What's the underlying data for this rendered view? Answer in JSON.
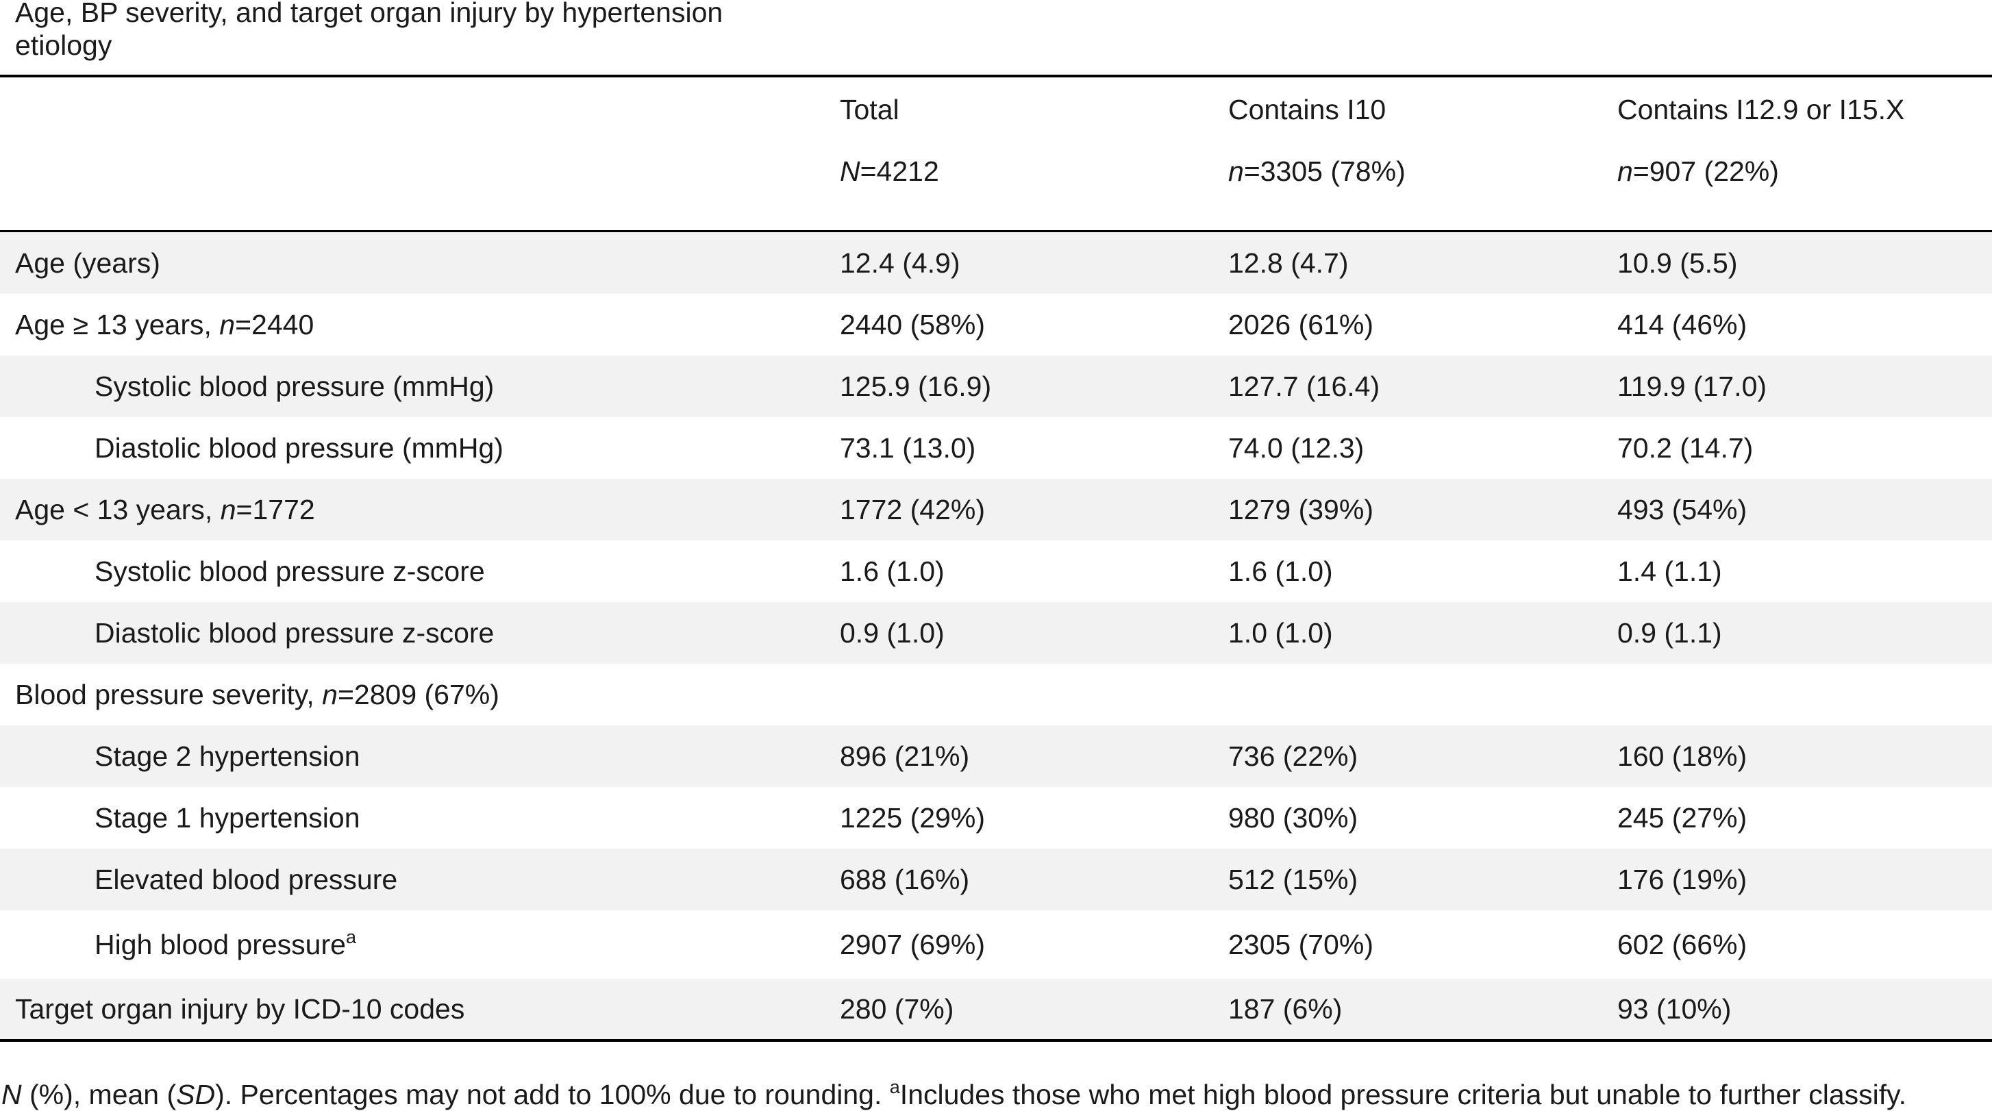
{
  "caption": "Age, BP severity, and target organ injury by hypertension etiology",
  "columns": [
    {
      "label": "Total",
      "n_prefix": "N",
      "n_value": "=4212"
    },
    {
      "label": "Contains I10",
      "n_prefix": "n",
      "n_value": "=3305 (78%)"
    },
    {
      "label": "Contains I12.9 or I15.X",
      "n_prefix": "n",
      "n_value": "=907 (22%)"
    }
  ],
  "rows": [
    {
      "label": "Age (years)",
      "c1": "12.4 (4.9)",
      "c2": "12.8 (4.7)",
      "c3": "10.9 (5.5)"
    },
    {
      "label": "Age ≥ 13 years, ",
      "label_em": "n",
      "label_tail": "=2440",
      "c1": "2440 (58%)",
      "c2": "2026 (61%)",
      "c3": "414 (46%)"
    },
    {
      "label": "Systolic blood pressure (mmHg)",
      "c1": "125.9 (16.9)",
      "c2": "127.7 (16.4)",
      "c3": "119.9 (17.0)"
    },
    {
      "label": "Diastolic blood pressure (mmHg)",
      "c1": "73.1 (13.0)",
      "c2": "74.0 (12.3)",
      "c3": "70.2 (14.7)"
    },
    {
      "label": "Age < 13 years, ",
      "label_em": "n",
      "label_tail": "=1772",
      "c1": "1772 (42%)",
      "c2": "1279 (39%)",
      "c3": "493 (54%)"
    },
    {
      "label": "Systolic blood pressure z-score",
      "c1": "1.6 (1.0)",
      "c2": "1.6 (1.0)",
      "c3": "1.4 (1.1)"
    },
    {
      "label": "Diastolic blood pressure z-score",
      "c1": "0.9 (1.0)",
      "c2": "1.0 (1.0)",
      "c3": "0.9 (1.1)"
    },
    {
      "label": "Blood pressure severity, ",
      "label_em": "n",
      "label_tail": "=2809 (67%)",
      "c1": "",
      "c2": "",
      "c3": ""
    },
    {
      "label": "Stage 2 hypertension",
      "c1": "896 (21%)",
      "c2": "736 (22%)",
      "c3": "160 (18%)"
    },
    {
      "label": "Stage 1 hypertension",
      "c1": "1225 (29%)",
      "c2": "980 (30%)",
      "c3": "245 (27%)"
    },
    {
      "label": "Elevated blood pressure",
      "c1": "688 (16%)",
      "c2": "512 (15%)",
      "c3": "176 (19%)"
    },
    {
      "label": "High blood pressure",
      "label_sup": "a",
      "c1": "2907 (69%)",
      "c2": "2305 (70%)",
      "c3": "602 (66%)"
    },
    {
      "label": "Target organ injury by ICD-10 codes",
      "c1": "280 (7%)",
      "c2": "187 (6%)",
      "c3": "93 (10%)"
    }
  ],
  "footnote": {
    "em1": "N",
    "t1": " (%), mean (",
    "em2": "SD",
    "t2": "). Percentages may not add to 100% due to rounding. ",
    "sup": "a",
    "t3": "Includes those who met high blood pressure criteria but unable to further classify."
  }
}
